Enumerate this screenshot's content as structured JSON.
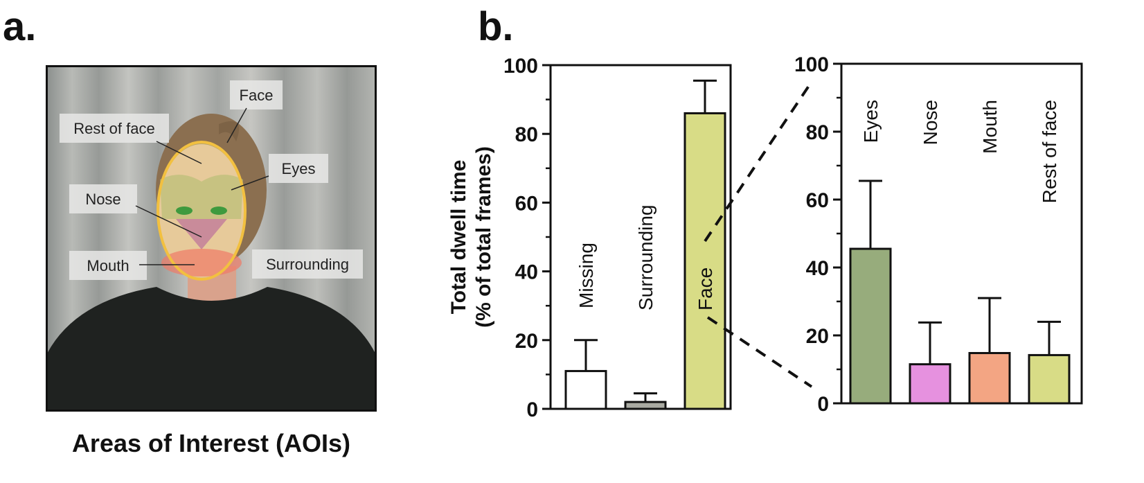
{
  "panels": {
    "a": "a.",
    "b": "b."
  },
  "photo": {
    "caption": "Areas of Interest (AOIs)",
    "aoi_labels": {
      "face": "Face",
      "rest_of_face": "Rest of face",
      "eyes": "Eyes",
      "nose": "Nose",
      "mouth": "Mouth",
      "surrounding": "Surrounding"
    }
  },
  "colors": {
    "missing": "#ffffff",
    "surrounding": "#a9aaa2",
    "face": "#d8dc86",
    "eyes": "#97ac7c",
    "nose": "#e691df",
    "mouth": "#f3a583",
    "rest_of_face": "#d8dc86",
    "axis": "#111111"
  },
  "chart_data": [
    {
      "type": "bar",
      "ylabel_lines": [
        "Total dwell time",
        "(% of total frames)"
      ],
      "ylim": [
        0,
        100
      ],
      "yticks": [
        0,
        20,
        40,
        60,
        80,
        100
      ],
      "categories": [
        "Missing",
        "Surrounding",
        "Face"
      ],
      "values": [
        11,
        2,
        86
      ],
      "errors": [
        9,
        2.5,
        9.5
      ],
      "bar_colors": [
        "#ffffff",
        "#a9aaa2",
        "#d8dc86"
      ],
      "category_label_placement": "vertical text above bars"
    },
    {
      "type": "bar",
      "ylim": [
        0,
        100
      ],
      "yticks": [
        0,
        20,
        40,
        60,
        80,
        100
      ],
      "categories": [
        "Eyes",
        "Nose",
        "Mouth",
        "Rest of face"
      ],
      "values": [
        45.5,
        11.5,
        14.8,
        14.2
      ],
      "errors": [
        20,
        12.3,
        16.2,
        9.8
      ],
      "bar_colors": [
        "#97ac7c",
        "#e691df",
        "#f3a583",
        "#d8dc86"
      ],
      "category_label_placement": "vertical text at top of plot"
    }
  ]
}
